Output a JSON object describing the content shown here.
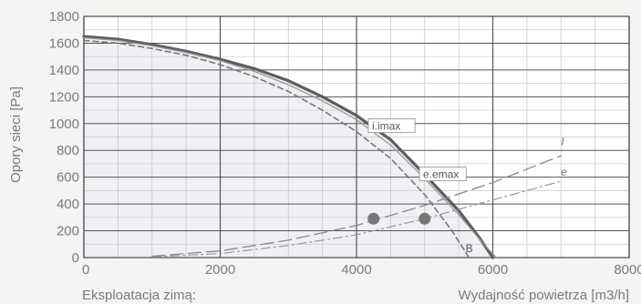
{
  "chart_data": {
    "type": "line",
    "ylabel": "Opory sieci [Pa]",
    "xlabel": "Wydajność powietrza [m3/h]",
    "caption": "Eksploatacja zimą:",
    "xlim": [
      0,
      8000
    ],
    "ylim": [
      0,
      1800
    ],
    "x_ticks": [
      "0",
      "2000",
      "4000",
      "6000",
      "8000"
    ],
    "y_ticks": [
      "0",
      "200",
      "400",
      "600",
      "800",
      "1000",
      "1200",
      "1400",
      "1600",
      "1800"
    ],
    "grid": true,
    "series": [
      {
        "name": "i.imax",
        "style": "solid-bold",
        "color": "#5d5d5d",
        "points": [
          [
            0,
            1650
          ],
          [
            500,
            1630
          ],
          [
            1000,
            1590
          ],
          [
            1500,
            1540
          ],
          [
            2000,
            1480
          ],
          [
            2500,
            1410
          ],
          [
            3000,
            1320
          ],
          [
            3500,
            1200
          ],
          [
            4000,
            1060
          ],
          [
            4500,
            880
          ],
          [
            5000,
            620
          ],
          [
            5500,
            350
          ],
          [
            5800,
            150
          ],
          [
            6000,
            0
          ]
        ]
      },
      {
        "name": "e.emax",
        "style": "solid-thin",
        "color": "#999999",
        "points": [
          [
            0,
            1640
          ],
          [
            500,
            1620
          ],
          [
            1000,
            1580
          ],
          [
            1500,
            1530
          ],
          [
            2000,
            1470
          ],
          [
            2500,
            1390
          ],
          [
            3000,
            1290
          ],
          [
            3500,
            1170
          ],
          [
            4000,
            1030
          ],
          [
            4500,
            840
          ],
          [
            5000,
            590
          ],
          [
            5500,
            320
          ],
          [
            5850,
            110
          ],
          [
            6050,
            0
          ]
        ]
      },
      {
        "name": "B",
        "style": "dashed",
        "color": "#777777",
        "points": [
          [
            0,
            1620
          ],
          [
            500,
            1600
          ],
          [
            1000,
            1560
          ],
          [
            1500,
            1510
          ],
          [
            2000,
            1440
          ],
          [
            2500,
            1350
          ],
          [
            3000,
            1240
          ],
          [
            3500,
            1100
          ],
          [
            4000,
            940
          ],
          [
            4500,
            740
          ],
          [
            5000,
            470
          ],
          [
            5400,
            200
          ],
          [
            5650,
            0
          ]
        ]
      },
      {
        "name": "I",
        "style": "long-dash",
        "color": "#888888",
        "points": [
          [
            1000,
            10
          ],
          [
            2000,
            50
          ],
          [
            3000,
            130
          ],
          [
            4000,
            240
          ],
          [
            5000,
            390
          ],
          [
            6000,
            560
          ],
          [
            7000,
            760
          ]
        ]
      },
      {
        "name": "e",
        "style": "dash-dot",
        "color": "#999999",
        "points": [
          [
            1000,
            5
          ],
          [
            2000,
            30
          ],
          [
            3000,
            90
          ],
          [
            4000,
            170
          ],
          [
            5000,
            290
          ],
          [
            6000,
            430
          ],
          [
            7000,
            570
          ]
        ]
      }
    ],
    "points": [
      {
        "x": 4250,
        "y": 290
      },
      {
        "x": 5000,
        "y": 290
      }
    ],
    "annotations": [
      {
        "text": "i.imax",
        "x": 4200,
        "y": 960
      },
      {
        "text": "e.emax",
        "x": 4950,
        "y": 600
      },
      {
        "text": "B",
        "x": 5600,
        "y": 40
      },
      {
        "text": "I",
        "x": 7000,
        "y": 840
      },
      {
        "text": "e",
        "x": 7000,
        "y": 610
      }
    ]
  },
  "colors": {
    "background": "#f4f4f2",
    "plot_area": "#ffffff",
    "shade": "#e8eaee",
    "grid_major": "#555555",
    "grid_minor": "#c8c8c8",
    "text": "#7a7a7a",
    "marker": "#777777"
  }
}
